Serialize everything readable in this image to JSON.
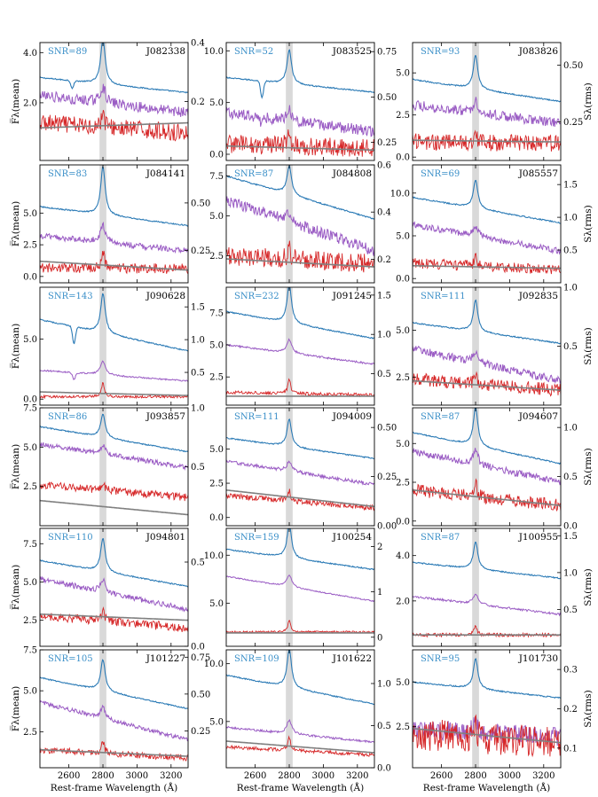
{
  "chart_data": {
    "type": "line",
    "colors": {
      "mean": "#2c7bb6",
      "rms": "#9a5cc4",
      "snr_spec": "#d62728",
      "model": "#808080",
      "band": "#d9d9d9",
      "snr_text": "#3a8fc8"
    },
    "xlabel": "Rest-frame Wavelength (Å)",
    "ylabel_left": "F̅λ(mean)",
    "ylabel_right": "Sλ(rms)",
    "xlim": [
      2430,
      3300
    ],
    "xticks": [
      "2600",
      "2800",
      "3000",
      "3200"
    ],
    "highlight_band": [
      2780,
      2820
    ],
    "panels": [
      {
        "id": "J082338",
        "snr": "SNR=89",
        "ylim": [
          -0.3,
          4.4
        ],
        "yticks": [
          "2.0",
          "4.0"
        ],
        "y2ticks": [
          "0.2",
          "0.4"
        ],
        "y2lim": [
          0,
          0.4
        ],
        "mean": 3.0,
        "meanEnd": 2.4,
        "peak": 1.8,
        "purple": 2.3,
        "purpleEnd": 1.6,
        "red": 1.2,
        "redEnd": 0.8,
        "noise": 0.35,
        "model": 1.0,
        "modelEnd": 1.2,
        "feature": [
          2620,
          -0.3
        ]
      },
      {
        "id": "J083525",
        "snr": "SNR=52",
        "ylim": [
          -0.6,
          10.8
        ],
        "yticks": [
          "0.0",
          "5.0",
          "10.0"
        ],
        "y2ticks": [
          "0.25",
          "0.50",
          "0.75"
        ],
        "y2lim": [
          0.15,
          0.8
        ],
        "mean": 7.4,
        "meanEnd": 6.0,
        "peak": 3.3,
        "purple": 4.0,
        "purpleEnd": 2.2,
        "red": 1.0,
        "redEnd": 0.6,
        "noise": 0.9,
        "model": 0.8,
        "modelEnd": 0.4,
        "feature": [
          2640,
          -1.6
        ]
      },
      {
        "id": "J083826",
        "snr": "SNR=93",
        "ylim": [
          -0.2,
          6.8
        ],
        "yticks": [
          "0.0",
          "2.5",
          "5.0"
        ],
        "y2ticks": [
          "0.25",
          "0.50"
        ],
        "y2lim": [
          0.08,
          0.6
        ],
        "mean": 4.6,
        "meanEnd": 3.3,
        "peak": 2.0,
        "purple": 3.1,
        "purpleEnd": 2.0,
        "red": 0.9,
        "redEnd": 0.8,
        "noise": 0.5,
        "model": 1.0,
        "modelEnd": 0.9,
        "feature": null
      },
      {
        "id": "J084141",
        "snr": "SNR=83",
        "ylim": [
          -0.5,
          8.8
        ],
        "yticks": [
          "0.0",
          "2.5",
          "5.0"
        ],
        "y2ticks": [
          "0.25",
          "0.50"
        ],
        "y2lim": [
          0.08,
          0.7
        ],
        "mean": 5.5,
        "meanEnd": 4.0,
        "peak": 3.8,
        "purple": 3.2,
        "purpleEnd": 2.0,
        "red": 0.7,
        "redEnd": 0.6,
        "noise": 0.4,
        "model": 1.2,
        "modelEnd": 0.5,
        "feature": null
      },
      {
        "id": "J084808",
        "snr": "SNR=87",
        "ylim": [
          0.8,
          8.2
        ],
        "yticks": [
          "2.5",
          "5.0",
          "7.5"
        ],
        "y2ticks": [
          "0.2",
          "0.4",
          "0.6"
        ],
        "y2lim": [
          0.1,
          0.6
        ],
        "mean": 7.5,
        "meanEnd": 4.8,
        "peak": 1.8,
        "purple": 6.0,
        "purpleEnd": 2.8,
        "red": 2.5,
        "redEnd": 2.0,
        "noise": 0.6,
        "model": 2.3,
        "modelEnd": 1.8,
        "feature": null
      },
      {
        "id": "J085557",
        "snr": "SNR=69",
        "ylim": [
          -0.5,
          13.3
        ],
        "yticks": [
          "0.0",
          "5.0",
          "10.0"
        ],
        "y2ticks": [
          "0.5",
          "1.0",
          "1.5"
        ],
        "y2lim": [
          0,
          1.8
        ],
        "mean": 9.5,
        "meanEnd": 6.5,
        "peak": 3.3,
        "purple": 6.3,
        "purpleEnd": 3.2,
        "red": 1.8,
        "redEnd": 1.0,
        "noise": 0.6,
        "model": 1.5,
        "modelEnd": 1.2,
        "feature": null
      },
      {
        "id": "J090628",
        "snr": "SNR=143",
        "ylim": [
          -0.5,
          9.3
        ],
        "yticks": [
          "0.0",
          "5.0"
        ],
        "y2ticks": [
          "0.5",
          "1.0",
          "1.5"
        ],
        "y2lim": [
          0,
          1.8
        ],
        "mean": 6.6,
        "meanEnd": 4.0,
        "peak": 3.3,
        "purple": 2.4,
        "purpleEnd": 1.5,
        "red": 0.2,
        "redEnd": 0.2,
        "noise": 0.1,
        "model": 0.6,
        "modelEnd": 0.3,
        "feature": [
          2630,
          -1.4
        ]
      },
      {
        "id": "J091245",
        "snr": "SNR=232",
        "ylim": [
          0.3,
          9.5
        ],
        "yticks": [
          "2.5",
          "5.0",
          "7.5"
        ],
        "y2ticks": [
          "0.5",
          "1.0",
          "1.5"
        ],
        "y2lim": [
          0.1,
          1.6
        ],
        "mean": 7.6,
        "meanEnd": 5.5,
        "peak": 3.0,
        "purple": 5.0,
        "purpleEnd": 3.5,
        "red": 1.3,
        "redEnd": 1.1,
        "noise": 0.12,
        "model": 1.0,
        "modelEnd": 1.0,
        "feature": null
      },
      {
        "id": "J092835",
        "snr": "SNR=111",
        "ylim": [
          1.0,
          7.3
        ],
        "yticks": [
          "2.5",
          "5.0"
        ],
        "y2ticks": [
          "0.5",
          "1.0"
        ],
        "y2lim": [
          0,
          1.0
        ],
        "mean": 5.4,
        "meanEnd": 4.3,
        "peak": 1.7,
        "purple": 4.0,
        "purpleEnd": 2.3,
        "red": 2.4,
        "redEnd": 1.8,
        "noise": 0.35,
        "model": 2.3,
        "modelEnd": 1.8,
        "feature": null
      },
      {
        "id": "J093857",
        "snr": "SNR=86",
        "ylim": [
          0.0,
          7.5
        ],
        "yticks": [
          "2.5",
          "5.0",
          "7.5"
        ],
        "y2ticks": [
          "0.5",
          "1.0"
        ],
        "y2lim": [
          0,
          1.0
        ],
        "mean": 6.3,
        "meanEnd": 4.7,
        "peak": 1.5,
        "purple": 5.2,
        "purpleEnd": 3.7,
        "red": 2.6,
        "redEnd": 1.8,
        "noise": 0.25,
        "model": 1.6,
        "modelEnd": 0.7,
        "feature": null
      },
      {
        "id": "J094009",
        "snr": "SNR=111",
        "ylim": [
          -0.6,
          8.0
        ],
        "yticks": [
          "0.0",
          "2.5",
          "5.0"
        ],
        "y2ticks": [
          "0.00",
          "0.25",
          "0.50"
        ],
        "y2lim": [
          0,
          0.6
        ],
        "mean": 5.8,
        "meanEnd": 4.3,
        "peak": 2.0,
        "purple": 4.1,
        "purpleEnd": 2.4,
        "red": 1.6,
        "redEnd": 0.7,
        "noise": 0.2,
        "model": 2.0,
        "modelEnd": 0.8,
        "feature": null
      },
      {
        "id": "J094607",
        "snr": "SNR=87",
        "ylim": [
          -0.3,
          7.3
        ],
        "yticks": [
          "0.0",
          "2.5",
          "5.0"
        ],
        "y2ticks": [
          "0.0",
          "0.5",
          "1.0"
        ],
        "y2lim": [
          0,
          1.2
        ],
        "mean": 5.7,
        "meanEnd": 3.7,
        "peak": 2.5,
        "purple": 4.5,
        "purpleEnd": 2.5,
        "red": 2.0,
        "redEnd": 1.0,
        "noise": 0.4,
        "model": 2.0,
        "modelEnd": 1.0,
        "feature": null
      },
      {
        "id": "J094801",
        "snr": "SNR=110",
        "ylim": [
          0.8,
          8.5
        ],
        "yticks": [
          "2.5",
          "5.0",
          "7.5"
        ],
        "y2ticks": [
          "0.0",
          "0.5"
        ],
        "y2lim": [
          0,
          0.7
        ],
        "mean": 6.4,
        "meanEnd": 4.7,
        "peak": 2.2,
        "purple": 5.2,
        "purpleEnd": 3.2,
        "red": 2.8,
        "redEnd": 2.0,
        "noise": 0.3,
        "model": 2.9,
        "modelEnd": 2.5,
        "feature": null
      },
      {
        "id": "J100254",
        "snr": "SNR=159",
        "ylim": [
          0.5,
          12.8
        ],
        "yticks": [
          "5.0",
          "10.0"
        ],
        "y2ticks": [
          "0",
          "1",
          "2"
        ],
        "y2lim": [
          -0.2,
          2.4
        ],
        "mean": 10.6,
        "meanEnd": 8.5,
        "peak": 3.5,
        "purple": 7.8,
        "purpleEnd": 5.2,
        "red": 2.0,
        "redEnd": 2.0,
        "noise": 0.1,
        "model": 1.9,
        "modelEnd": 1.9,
        "feature": null
      },
      {
        "id": "J100955",
        "snr": "SNR=87",
        "ylim": [
          0.0,
          5.2
        ],
        "yticks": [
          "2.0",
          "4.0"
        ],
        "y2ticks": [
          "0.5",
          "1.0",
          "1.5"
        ],
        "y2lim": [
          0,
          1.6
        ],
        "mean": 3.7,
        "meanEnd": 3.0,
        "peak": 1.2,
        "purple": 2.2,
        "purpleEnd": 1.4,
        "red": 0.5,
        "redEnd": 0.5,
        "noise": 0.08,
        "model": 0.5,
        "modelEnd": 0.5,
        "feature": null
      },
      {
        "id": "J101227",
        "snr": "SNR=105",
        "ylim": [
          0.3,
          7.5
        ],
        "yticks": [
          "2.5",
          "5.0",
          "7.5"
        ],
        "y2ticks": [
          "0.25",
          "0.50",
          "0.75"
        ],
        "y2lim": [
          0,
          0.8
        ],
        "mean": 5.8,
        "meanEnd": 3.9,
        "peak": 1.9,
        "purple": 4.3,
        "purpleEnd": 2.0,
        "red": 1.4,
        "redEnd": 0.9,
        "noise": 0.2,
        "model": 1.4,
        "modelEnd": 1.0,
        "feature": null
      },
      {
        "id": "J101622",
        "snr": "SNR=109",
        "ylim": [
          1.0,
          11.2
        ],
        "yticks": [
          "5.0",
          "10.0"
        ],
        "y2ticks": [
          "0.0",
          "0.5",
          "1.0"
        ],
        "y2lim": [
          0,
          1.4
        ],
        "mean": 9.0,
        "meanEnd": 6.5,
        "peak": 3.3,
        "purple": 4.5,
        "purpleEnd": 3.2,
        "red": 2.8,
        "redEnd": 2.1,
        "noise": 0.15,
        "model": 3.3,
        "modelEnd": 2.3,
        "feature": null
      },
      {
        "id": "J101730",
        "snr": "SNR=95",
        "ylim": [
          0.2,
          6.8
        ],
        "yticks": [
          "2.5",
          "5.0"
        ],
        "y2ticks": [
          "0.1",
          "0.2",
          "0.3"
        ],
        "y2lim": [
          0.05,
          0.35
        ],
        "mean": 5.0,
        "meanEnd": 4.1,
        "peak": 1.7,
        "purple": 2.4,
        "purpleEnd": 1.9,
        "red": 2.1,
        "redEnd": 1.6,
        "noise": 0.9,
        "model": 2.4,
        "modelEnd": 1.6,
        "feature": null
      }
    ]
  }
}
